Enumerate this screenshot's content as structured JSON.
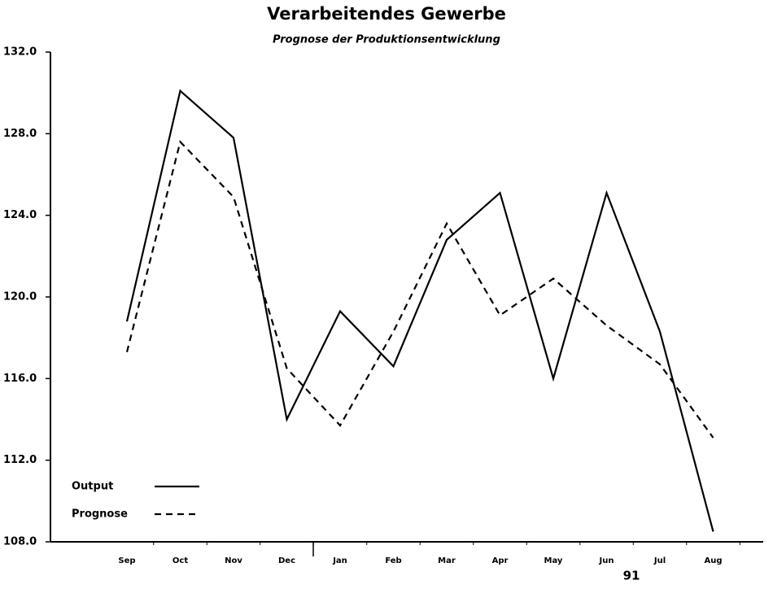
{
  "chart_data": {
    "type": "line",
    "title": "Verarbeitendes Gewerbe",
    "subtitle": "Prognose der Produktionsentwicklung",
    "annotation": "91",
    "categories": [
      "Sep",
      "Oct",
      "Nov",
      "Dec",
      "Jan",
      "Feb",
      "Mar",
      "Apr",
      "May",
      "Jun",
      "Jul",
      "Aug"
    ],
    "series": [
      {
        "name": "Output",
        "color": "#000000",
        "dash": "solid",
        "values": [
          118.8,
          130.1,
          127.8,
          114.0,
          119.3,
          116.6,
          122.8,
          125.1,
          116.0,
          125.1,
          118.3,
          108.5
        ]
      },
      {
        "name": "Prognose",
        "color": "#000000",
        "dash": "dashed",
        "values": [
          117.3,
          127.6,
          124.9,
          116.5,
          113.7,
          118.3,
          123.6,
          119.1,
          120.9,
          118.6,
          116.7,
          113.1
        ]
      }
    ],
    "ylim": [
      108,
      132
    ],
    "yticks": [
      {
        "value": 108,
        "label": "108.0"
      },
      {
        "value": 112,
        "label": "112.0"
      },
      {
        "value": 116,
        "label": "116.0"
      },
      {
        "value": 120,
        "label": "120.0"
      },
      {
        "value": 124,
        "label": "124.0"
      },
      {
        "value": 128,
        "label": "128.0"
      },
      {
        "value": 132,
        "label": "132.0"
      }
    ],
    "legend": "lower left"
  }
}
